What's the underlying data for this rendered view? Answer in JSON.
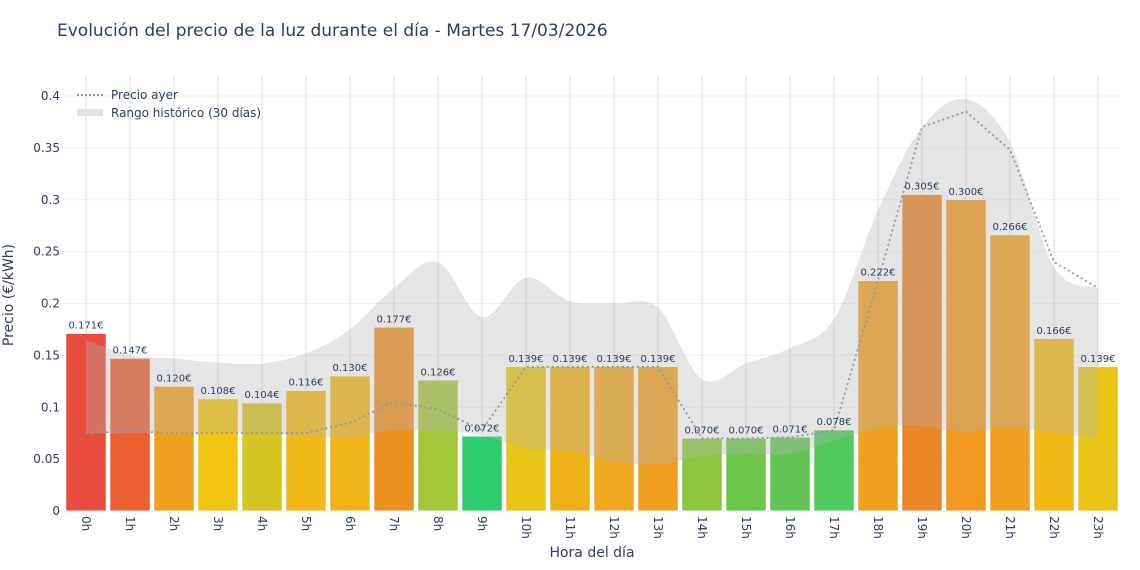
{
  "title": "Evolución del precio de la luz durante el día - Martes 17/03/2026",
  "chart_data": {
    "type": "bar",
    "title": "Evolución del precio de la luz durante el día - Martes 17/03/2026",
    "xlabel": "Hora del día",
    "ylabel": "Precio (€/kWh)",
    "ylim": [
      0,
      0.42
    ],
    "yticks": [
      "0",
      "0.05",
      "0.1",
      "0.15",
      "0.2",
      "0.25",
      "0.3",
      "0.35",
      "0.4"
    ],
    "grid": true,
    "legend_position": "top-left",
    "categories": [
      "0h",
      "1h",
      "2h",
      "3h",
      "4h",
      "5h",
      "6h",
      "7h",
      "8h",
      "9h",
      "10h",
      "11h",
      "12h",
      "13h",
      "14h",
      "15h",
      "16h",
      "17h",
      "18h",
      "19h",
      "20h",
      "21h",
      "22h",
      "23h"
    ],
    "values": [
      0.171,
      0.147,
      0.12,
      0.108,
      0.104,
      0.116,
      0.13,
      0.177,
      0.126,
      0.072,
      0.139,
      0.139,
      0.139,
      0.139,
      0.07,
      0.07,
      0.071,
      0.078,
      0.222,
      0.305,
      0.3,
      0.266,
      0.166,
      0.139
    ],
    "data_labels": [
      "0.171€",
      "0.147€",
      "0.120€",
      "0.108€",
      "0.104€",
      "0.116€",
      "0.130€",
      "0.177€",
      "0.126€",
      "0.072€",
      "0.139€",
      "0.139€",
      "0.139€",
      "0.139€",
      "0.070€",
      "0.070€",
      "0.071€",
      "0.078€",
      "0.222€",
      "0.305€",
      "0.300€",
      "0.266€",
      "0.166€",
      "0.139€"
    ],
    "bar_colors": [
      "#e74c3c",
      "#eb5f32",
      "#f0a020",
      "#f1c40f",
      "#d4c520",
      "#f0b818",
      "#f0b418",
      "#ee9020",
      "#a4c639",
      "#2ecc71",
      "#e8c516",
      "#f0b018",
      "#f0a820",
      "#f0a020",
      "#8cc63f",
      "#6cc64a",
      "#60c552",
      "#4ecb5c",
      "#f0a020",
      "#ec8428",
      "#f0981f",
      "#f0a020",
      "#f1b818",
      "#e8c516"
    ],
    "series": [
      {
        "name": "Precio ayer",
        "style": "dotted",
        "color": "#8a9aa8",
        "values": [
          0.075,
          0.077,
          0.075,
          0.075,
          0.075,
          0.075,
          0.085,
          0.105,
          0.098,
          0.078,
          0.139,
          0.139,
          0.139,
          0.139,
          0.07,
          0.07,
          0.071,
          0.078,
          0.222,
          0.37,
          0.385,
          0.348,
          0.24,
          0.215
        ]
      },
      {
        "name": "Rango histórico (30 días)",
        "style": "band",
        "color": "#b4b4b4",
        "upper": [
          0.165,
          0.15,
          0.147,
          0.143,
          0.142,
          0.152,
          0.175,
          0.215,
          0.24,
          0.187,
          0.225,
          0.202,
          0.2,
          0.196,
          0.127,
          0.142,
          0.157,
          0.185,
          0.29,
          0.37,
          0.397,
          0.355,
          0.235,
          0.215
        ],
        "lower": [
          0.075,
          0.075,
          0.075,
          0.075,
          0.075,
          0.072,
          0.071,
          0.078,
          0.077,
          0.073,
          0.06,
          0.057,
          0.048,
          0.045,
          0.053,
          0.055,
          0.055,
          0.068,
          0.08,
          0.082,
          0.076,
          0.081,
          0.075,
          0.07
        ]
      }
    ]
  }
}
